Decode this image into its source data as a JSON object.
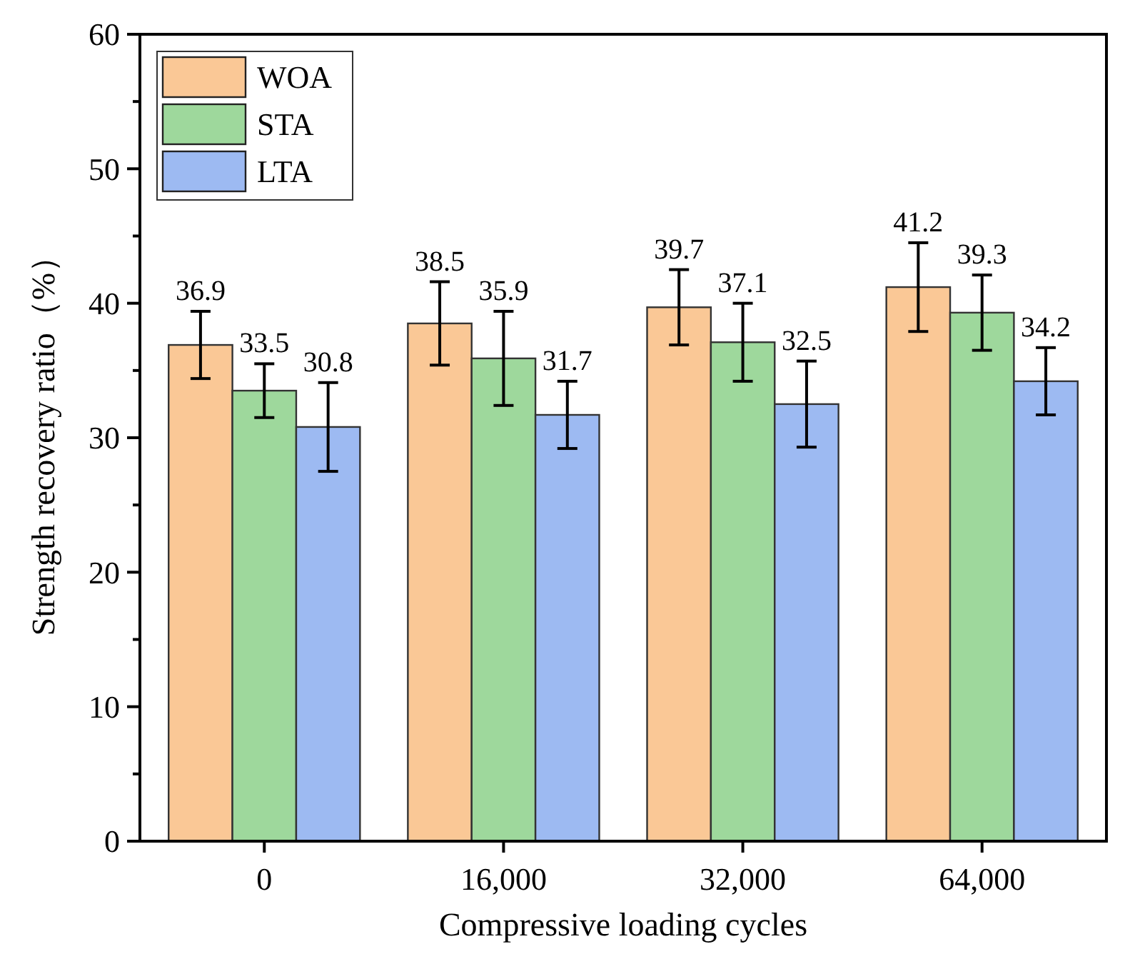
{
  "chart_data": {
    "type": "bar",
    "xlabel": "Compressive loading cycles",
    "ylabel": "Strength recovery ratio（%）",
    "categories": [
      "0",
      "16,000",
      "32,000",
      "64,000"
    ],
    "series": [
      {
        "name": "WOA",
        "color": "#fac896",
        "values": [
          36.9,
          38.5,
          39.7,
          41.2
        ],
        "errors": [
          2.5,
          3.1,
          2.8,
          3.3
        ]
      },
      {
        "name": "STA",
        "color": "#9ed89c",
        "values": [
          33.5,
          35.9,
          37.1,
          39.3
        ],
        "errors": [
          2.0,
          3.5,
          2.9,
          2.8
        ]
      },
      {
        "name": "LTA",
        "color": "#9dbaf2",
        "values": [
          30.8,
          31.7,
          32.5,
          34.2
        ],
        "errors": [
          3.3,
          2.5,
          3.2,
          2.5
        ]
      }
    ],
    "ylim": [
      0,
      60
    ],
    "yticks": [
      0,
      {
        "value": 5,
        "label": null
      },
      10,
      {
        "value": 15,
        "label": null
      },
      20,
      {
        "value": 25,
        "label": null
      },
      30,
      {
        "value": 35,
        "label": null
      },
      40,
      {
        "value": 45,
        "label": null
      },
      50,
      {
        "value": 55,
        "label": null
      },
      60
    ],
    "data_labels": true,
    "legend": "top left",
    "grid": false
  }
}
